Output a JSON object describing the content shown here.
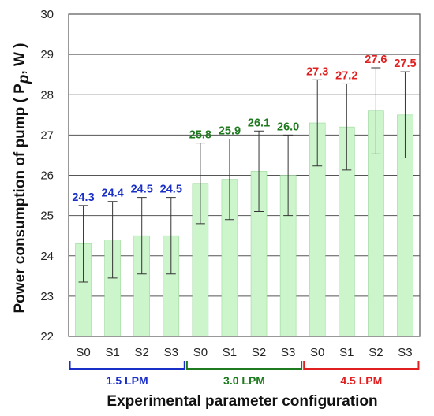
{
  "chart_data": {
    "type": "bar",
    "ylabel_prefix": "Power consumption of pump ( P",
    "ylabel_sub": "p",
    "ylabel_suffix": ", W )",
    "xlabel": "Experimental parameter configuration",
    "ylim": [
      22,
      30
    ],
    "yticks": [
      "22",
      "23",
      "24",
      "25",
      "26",
      "27",
      "28",
      "29",
      "30"
    ],
    "grid": true,
    "bar_color": "#ccf5cc",
    "groups": [
      {
        "label": "1.5 LPM",
        "color": "#1a2fc8",
        "categories": [
          "S0",
          "S1",
          "S2",
          "S3"
        ],
        "values": [
          24.3,
          24.4,
          24.5,
          24.5
        ],
        "labels": [
          "24.3",
          "24.4",
          "24.5",
          "24.5"
        ],
        "errors": [
          0.95,
          0.95,
          0.95,
          0.95
        ]
      },
      {
        "label": "3.0 LPM",
        "color": "#1e7a1e",
        "categories": [
          "S0",
          "S1",
          "S2",
          "S3"
        ],
        "values": [
          25.8,
          25.9,
          26.1,
          26.0
        ],
        "labels": [
          "25.8",
          "25.9",
          "26.1",
          "26.0"
        ],
        "errors": [
          1.0,
          1.0,
          1.0,
          1.0
        ]
      },
      {
        "label": "4.5 LPM",
        "color": "#e02020",
        "categories": [
          "S0",
          "S1",
          "S2",
          "S3"
        ],
        "values": [
          27.3,
          27.2,
          27.6,
          27.5
        ],
        "labels": [
          "27.3",
          "27.2",
          "27.6",
          "27.5"
        ],
        "errors": [
          1.07,
          1.07,
          1.07,
          1.07
        ]
      }
    ]
  }
}
